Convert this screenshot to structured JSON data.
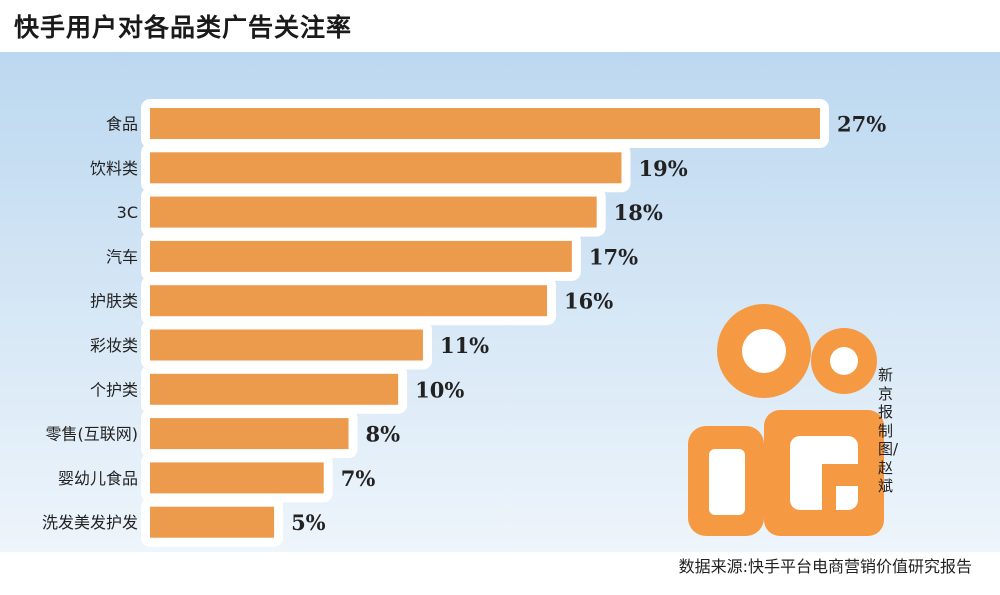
{
  "title": "快手用户对各品类广告关注率",
  "credit": "新京报制图/赵斌",
  "source": "数据来源:快手平台电商营销价值研究报告",
  "colors": {
    "bar": "#ec9a4c",
    "bar_highlight": "#ffffff",
    "background_top": "#bcd8f0",
    "background_bottom": "#eef5fb",
    "logo": "#f59a43"
  },
  "logo_icon": "camera-logo-icon",
  "chart_data": {
    "type": "bar",
    "orientation": "horizontal",
    "categories": [
      "食品",
      "饮料类",
      "3C",
      "汽车",
      "护肤类",
      "彩妆类",
      "个护类",
      "零售(互联网)",
      "婴幼儿食品",
      "洗发美发护发"
    ],
    "values": [
      27,
      19,
      18,
      17,
      16,
      11,
      10,
      8,
      7,
      5
    ],
    "value_labels": [
      "27%",
      "19%",
      "18%",
      "17%",
      "16%",
      "11%",
      "10%",
      "8%",
      "7%",
      "5%"
    ],
    "unit": "%",
    "xlim": [
      0,
      27
    ],
    "grid": false,
    "legend": "none"
  }
}
